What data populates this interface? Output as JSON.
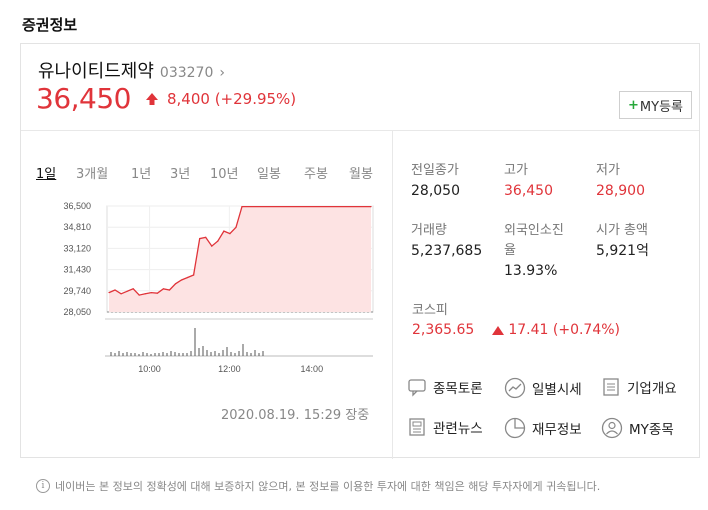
{
  "section_title": "증권정보",
  "stock": {
    "name": "유나이티드제약",
    "code": "033270",
    "price": "36,450",
    "change": "8,400 (+29.95%)",
    "direction": "up"
  },
  "my_button": {
    "plus": "+",
    "label": "MY등록"
  },
  "tabs": [
    {
      "label": "1일",
      "active": true
    },
    {
      "label": "3개월",
      "active": false
    },
    {
      "label": "1년",
      "active": false
    },
    {
      "label": "3년",
      "active": false
    },
    {
      "label": "10년",
      "active": false
    },
    {
      "label": "일봉",
      "active": false
    },
    {
      "label": "주봉",
      "active": false
    },
    {
      "label": "월봉",
      "active": false
    }
  ],
  "chart_data": {
    "type": "area",
    "title": "",
    "xlabel": "",
    "ylabel": "",
    "y_ticks": [
      "36,500",
      "34,810",
      "33,120",
      "31,430",
      "29,740",
      "28,050"
    ],
    "x_ticks": [
      "10:00",
      "12:00",
      "14:00"
    ],
    "ylim": [
      28050,
      36500
    ],
    "baseline": 28050,
    "x": [
      "09:00",
      "09:10",
      "09:20",
      "09:30",
      "09:40",
      "09:50",
      "10:00",
      "10:10",
      "10:20",
      "10:30",
      "10:40",
      "10:50",
      "11:00",
      "11:10",
      "11:20",
      "11:30",
      "11:40",
      "11:50",
      "12:00",
      "12:10",
      "12:20",
      "12:30",
      "12:40",
      "15:30"
    ],
    "values": [
      29600,
      29800,
      29500,
      29700,
      29900,
      29400,
      29500,
      29600,
      29550,
      29900,
      29800,
      30300,
      30600,
      30800,
      31000,
      33900,
      34000,
      33300,
      33700,
      34500,
      34300,
      34800,
      36450,
      36450
    ],
    "volume_note": "volume bars shown beneath price",
    "colors": {
      "line": "#e0343a",
      "fill": "#fde3e3"
    }
  },
  "timestamp": "2020.08.19. 15:29 장중",
  "stats": [
    {
      "label": "전일종가",
      "value": "28,050",
      "red": false
    },
    {
      "label": "고가",
      "value": "36,450",
      "red": true
    },
    {
      "label": "저가",
      "value": "28,900",
      "red": true
    },
    {
      "label": "거래량",
      "value": "5,237,685",
      "red": false
    },
    {
      "label": "외국인소진율",
      "value": "13.93%",
      "red": false
    },
    {
      "label": "시가 총액",
      "value": "5,921억",
      "red": false
    }
  ],
  "kospi": {
    "label": "코스피",
    "value": "2,365.65",
    "change": "17.41 (+0.74%)"
  },
  "links": [
    {
      "label": "종목토론",
      "icon": "speech-bubble-icon"
    },
    {
      "label": "일별시세",
      "icon": "trend-chart-icon"
    },
    {
      "label": "기업개요",
      "icon": "list-icon"
    },
    {
      "label": "관련뉴스",
      "icon": "news-icon"
    },
    {
      "label": "재무정보",
      "icon": "pie-chart-icon"
    },
    {
      "label": "MY종목",
      "icon": "user-icon"
    }
  ],
  "notice": "네이버는 본 정보의 정확성에 대해 보증하지 않으며, 본 정보를 이용한 투자에 대한 책임은 해당 투자자에게 귀속됩니다.",
  "colors": {
    "up": "#e0343a",
    "plus": "#27a83a"
  }
}
